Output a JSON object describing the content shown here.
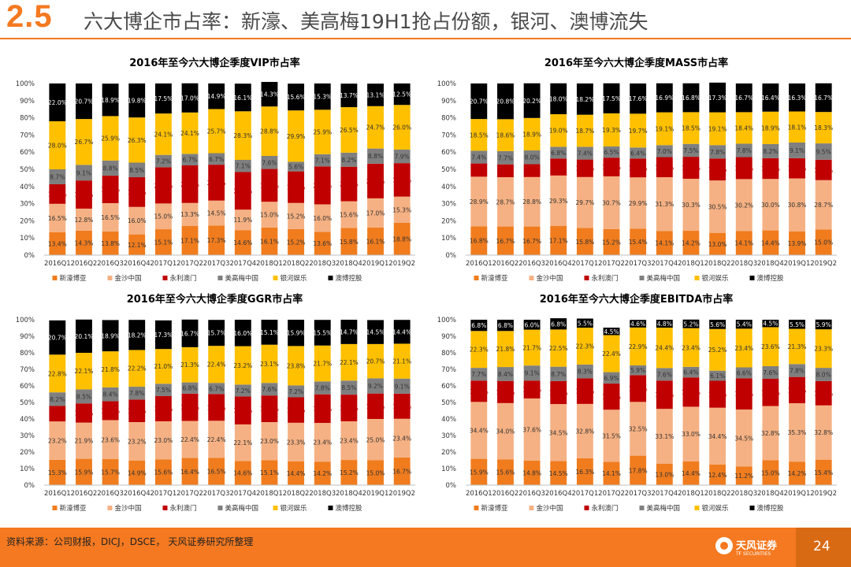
{
  "header": {
    "section_number": "2.5",
    "title": "六大博企市占率：新濠、美高梅19H1抢占份额，银河、澳博流失"
  },
  "footer": {
    "source": "资料来源：公司财报，DICJ，DSCE， 天风证券研究所整理",
    "logo_cn": "天风证券",
    "logo_en": "TF SECURITIES",
    "page_number": "24"
  },
  "colors": {
    "accent": "#F47920",
    "series": [
      "#F07C1E",
      "#F5B183",
      "#C00000",
      "#7F7F7F",
      "#FFC000",
      "#000000"
    ]
  },
  "chart_data": [
    {
      "type": "bar",
      "stacked": true,
      "title": "2016年至今六大博企季度VIP市占率",
      "categories": [
        "2016Q1",
        "2016Q2",
        "2016Q3",
        "2016Q4",
        "2017Q1",
        "2017Q2",
        "2017Q3",
        "2017Q4",
        "2018Q1",
        "2018Q2",
        "2018Q3",
        "2018Q4",
        "2019Q1",
        "2019Q2"
      ],
      "ylim": [
        0,
        100
      ],
      "yticks": [
        "0%",
        "10%",
        "20%",
        "30%",
        "40%",
        "50%",
        "60%",
        "70%",
        "80%",
        "90%",
        "100%"
      ],
      "legend_position": "bottom",
      "series": [
        {
          "name": "新濠博亚",
          "values": [
            13.4,
            14.3,
            13.8,
            12.1,
            15.1,
            17.1,
            17.3,
            14.6,
            16.1,
            15.2,
            13.6,
            15.8,
            16.1,
            18.8
          ]
        },
        {
          "name": "金沙中国",
          "values": [
            16.5,
            12.8,
            16.5,
            16.0,
            15.0,
            13.3,
            14.5,
            11.9,
            15.0,
            15.2,
            16.0,
            15.6,
            17.0,
            15.3
          ]
        },
        {
          "name": "永利澳门",
          "values": [
            11.4,
            16.4,
            16.0,
            17.3,
            21.1,
            21.9,
            20.9,
            21.9,
            19.1,
            18.4,
            22.1,
            20.1,
            20.2,
            19.5
          ]
        },
        {
          "name": "美高梅中国",
          "values": [
            8.7,
            9.1,
            8.8,
            8.5,
            7.2,
            6.7,
            6.7,
            7.1,
            7.6,
            5.6,
            7.1,
            8.2,
            8.8,
            7.9
          ]
        },
        {
          "name": "银河娱乐",
          "values": [
            28.0,
            26.7,
            25.9,
            26.3,
            24.1,
            24.1,
            25.7,
            28.3,
            28.8,
            29.9,
            25.9,
            26.5,
            24.7,
            26.0
          ]
        },
        {
          "name": "澳博控股",
          "values": [
            22.0,
            20.7,
            18.9,
            19.8,
            17.5,
            17.0,
            14.9,
            16.1,
            14.3,
            15.6,
            15.3,
            13.7,
            13.1,
            12.5
          ]
        }
      ]
    },
    {
      "type": "bar",
      "stacked": true,
      "title": "2016年至今六大博企季度MASS市占率",
      "categories": [
        "2016Q1",
        "2016Q2",
        "2016Q3",
        "2016Q4",
        "2017Q1",
        "2017Q2",
        "2017Q3",
        "2017Q4",
        "2018Q1",
        "2018Q2",
        "2018Q3",
        "2018Q4",
        "2019Q1",
        "2019Q2"
      ],
      "ylim": [
        0,
        100
      ],
      "yticks": [
        "0%",
        "10%",
        "20%",
        "30%",
        "40%",
        "50%",
        "60%",
        "70%",
        "80%",
        "90%",
        "100%"
      ],
      "legend_position": "bottom",
      "series": [
        {
          "name": "新濠博亚",
          "values": [
            16.8,
            16.7,
            16.7,
            17.1,
            15.8,
            15.2,
            15.4,
            14.1,
            14.2,
            13.0,
            14.1,
            14.4,
            13.9,
            15.0
          ]
        },
        {
          "name": "金沙中国",
          "values": [
            28.9,
            28.7,
            28.8,
            29.3,
            29.7,
            30.7,
            29.9,
            31.3,
            30.3,
            30.5,
            30.2,
            30.0,
            30.8,
            28.7
          ]
        },
        {
          "name": "永利澳门",
          "values": [
            7.7,
            7.5,
            7.5,
            9.9,
            10.2,
            10.9,
            11.0,
            11.7,
            12.8,
            12.8,
            12.8,
            12.1,
            11.8,
            11.9
          ]
        },
        {
          "name": "美高梅中国",
          "values": [
            7.4,
            7.7,
            8.0,
            6.8,
            7.4,
            6.5,
            6.4,
            7.0,
            7.5,
            7.8,
            7.8,
            8.2,
            9.1,
            9.5
          ]
        },
        {
          "name": "银河娱乐",
          "values": [
            18.5,
            18.6,
            18.9,
            19.0,
            18.7,
            19.3,
            19.7,
            19.1,
            18.5,
            19.1,
            18.4,
            18.9,
            18.1,
            18.3
          ]
        },
        {
          "name": "澳博控股",
          "values": [
            20.7,
            20.8,
            20.2,
            18.0,
            18.2,
            17.5,
            17.6,
            16.9,
            16.8,
            17.3,
            16.7,
            16.4,
            16.3,
            16.7
          ]
        }
      ]
    },
    {
      "type": "bar",
      "stacked": true,
      "title": "2016年至今六大博企季度GGR市占率",
      "categories": [
        "2016Q1",
        "2016Q2",
        "2016Q3",
        "2016Q4",
        "2017Q1",
        "2017Q2",
        "2017Q3",
        "2017Q4",
        "2018Q1",
        "2018Q2",
        "2018Q3",
        "2018Q4",
        "2019Q1",
        "2019Q2"
      ],
      "ylim": [
        0,
        100
      ],
      "yticks": [
        "0%",
        "10%",
        "20%",
        "30%",
        "40%",
        "50%",
        "60%",
        "70%",
        "80%",
        "90%",
        "100%"
      ],
      "legend_position": "bottom",
      "series": [
        {
          "name": "新濠博亚",
          "values": [
            15.3,
            15.9,
            15.7,
            14.9,
            15.6,
            16.4,
            16.5,
            14.6,
            15.1,
            14.4,
            14.2,
            15.2,
            15.0,
            16.7
          ]
        },
        {
          "name": "金沙中国",
          "values": [
            23.2,
            21.9,
            23.6,
            23.2,
            23.0,
            22.4,
            22.4,
            22.1,
            23.0,
            23.3,
            23.4,
            23.4,
            25.0,
            23.4
          ]
        },
        {
          "name": "永利澳门",
          "values": [
            9.4,
            11.6,
            11.4,
            13.6,
            15.2,
            16.5,
            16.2,
            16.9,
            16.1,
            15.4,
            17.3,
            16.1,
            15.4,
            15.2
          ]
        },
        {
          "name": "美高梅中国",
          "values": [
            8.2,
            8.5,
            8.4,
            7.8,
            7.5,
            6.8,
            6.7,
            7.2,
            7.6,
            7.2,
            7.8,
            8.5,
            9.2,
            9.1
          ]
        },
        {
          "name": "银河娱乐",
          "values": [
            22.8,
            22.1,
            21.8,
            22.2,
            21.0,
            21.3,
            22.4,
            23.2,
            23.1,
            23.8,
            21.7,
            22.1,
            20.7,
            21.1
          ]
        },
        {
          "name": "澳博控股",
          "values": [
            20.7,
            20.1,
            18.9,
            18.2,
            17.3,
            16.7,
            15.7,
            16.0,
            15.1,
            15.9,
            15.5,
            14.7,
            14.5,
            14.4
          ]
        }
      ]
    },
    {
      "type": "bar",
      "stacked": true,
      "title": "2016年至今六大博企季度EBITDA市占率",
      "categories": [
        "2016Q1",
        "2016Q2",
        "2016Q3",
        "2016Q4",
        "2017Q1",
        "2017Q2",
        "2017Q3",
        "2017Q4",
        "2018Q1",
        "2018Q2",
        "2018Q3",
        "2018Q4",
        "2019Q1",
        "2019Q2"
      ],
      "ylim": [
        0,
        100
      ],
      "yticks": [
        "0%",
        "10%",
        "20%",
        "30%",
        "40%",
        "50%",
        "60%",
        "70%",
        "80%",
        "90%",
        "100%"
      ],
      "legend_position": "bottom",
      "series": [
        {
          "name": "新濠博亚",
          "values": [
            15.9,
            15.6,
            14.8,
            14.5,
            16.3,
            14.1,
            17.8,
            13.0,
            14.4,
            12.4,
            11.2,
            15.0,
            14.2,
            15.4
          ]
        },
        {
          "name": "金沙中国",
          "values": [
            34.4,
            34.0,
            37.6,
            34.5,
            32.8,
            31.5,
            32.5,
            33.1,
            33.0,
            34.4,
            34.5,
            32.8,
            35.3,
            32.8
          ]
        },
        {
          "name": "永利澳门",
          "values": [
            12.9,
            13.4,
            10.8,
            13.9,
            15.5,
            15.8,
            16.2,
            17.1,
            17.7,
            16.3,
            18.9,
            16.5,
            15.9,
            14.7
          ]
        },
        {
          "name": "美高梅中国",
          "values": [
            7.7,
            8.4,
            9.1,
            8.7,
            8.3,
            6.9,
            5.9,
            7.6,
            6.4,
            6.1,
            6.6,
            7.6,
            7.8,
            8.0
          ]
        },
        {
          "name": "银河娱乐",
          "values": [
            22.3,
            21.8,
            21.7,
            22.5,
            22.3,
            22.4,
            22.9,
            24.4,
            23.4,
            25.2,
            23.4,
            23.6,
            21.3,
            23.3
          ]
        },
        {
          "name": "澳博控股",
          "values": [
            6.8,
            6.8,
            6.0,
            6.8,
            5.5,
            4.5,
            4.6,
            4.8,
            5.2,
            5.6,
            5.4,
            4.5,
            5.5,
            5.9
          ]
        }
      ]
    }
  ]
}
